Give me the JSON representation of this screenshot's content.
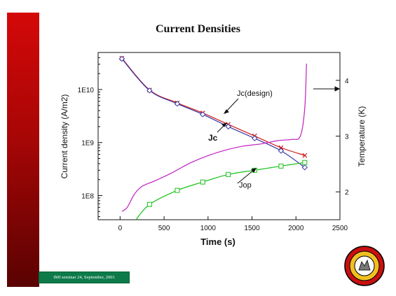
{
  "slide": {
    "title": "Current Densities",
    "footer": "IMI seminar 24, September, 2001"
  },
  "chart_data": {
    "type": "line",
    "title": "Current Densities",
    "xlabel": "Time (s)",
    "ylabel": "Current density (A/m2)",
    "y2label": "Temperature (K)",
    "xlim": [
      -250,
      2500
    ],
    "xticks": [
      0,
      500,
      1000,
      1500,
      2000,
      2500
    ],
    "ylim": [
      35000000.0,
      50000000000.0
    ],
    "yscale": "log",
    "yticks": [
      {
        "value": 100000000.0,
        "label": "1E8"
      },
      {
        "value": 1000000000.0,
        "label": "1E9"
      },
      {
        "value": 10000000000.0,
        "label": "1E10"
      }
    ],
    "y2lim": [
      1.5,
      4.5
    ],
    "y2ticks": [
      2,
      3,
      4
    ],
    "grid": false,
    "legend": "none",
    "series": [
      {
        "name": "Jc(design)",
        "axis": "left",
        "color": "#d01818",
        "marker": "x",
        "x": [
          20,
          335,
          650,
          940,
          1230,
          1530,
          1830,
          2100
        ],
        "y": [
          39000000000.0,
          9800000000.0,
          5600000000.0,
          3600000000.0,
          2200000000.0,
          1330000000.0,
          800000000.0,
          570000000.0
        ]
      },
      {
        "name": "Jc",
        "axis": "left",
        "color": "#3838a8",
        "marker": "diamond",
        "x": [
          20,
          335,
          650,
          940,
          1230,
          1530,
          1830,
          2100
        ],
        "y": [
          38000000000.0,
          9600000000.0,
          5400000000.0,
          3400000000.0,
          2000000000.0,
          1200000000.0,
          700000000.0,
          340000000.0
        ]
      },
      {
        "name": "Jop",
        "axis": "left",
        "color": "#18c018",
        "marker": "square",
        "x": [
          335,
          650,
          940,
          1230,
          1530,
          1830,
          2100
        ],
        "y": [
          68000000.0,
          125000000.0,
          180000000.0,
          250000000.0,
          300000000.0,
          360000000.0,
          420000000.0
        ]
      },
      {
        "name": "",
        "axis": "right",
        "color": "#c020c0",
        "marker": "none",
        "x": [
          20,
          80,
          160,
          250,
          400,
          600,
          800,
          1000,
          1200,
          1400,
          1600,
          1800,
          1950,
          2050,
          2100,
          2120
        ],
        "y": [
          1.65,
          1.72,
          1.95,
          2.1,
          2.2,
          2.35,
          2.52,
          2.65,
          2.75,
          2.82,
          2.86,
          2.92,
          2.94,
          3.0,
          3.5,
          4.3
        ]
      }
    ],
    "annotations": [
      {
        "text": "Jc(design)",
        "bold": false
      },
      {
        "text": "Jc",
        "bold": true
      },
      {
        "text": "Jop",
        "bold": false
      }
    ]
  }
}
